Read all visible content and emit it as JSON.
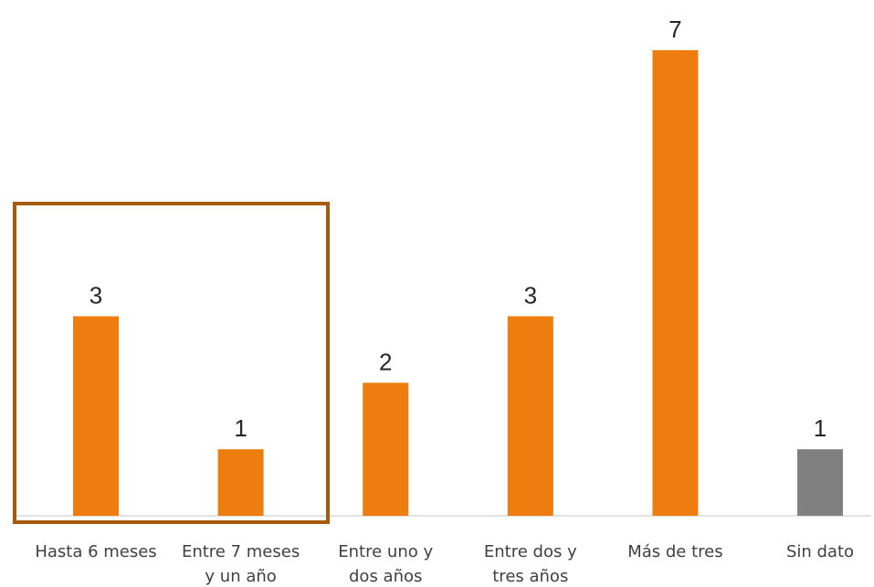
{
  "chart_data": {
    "type": "bar",
    "categories": [
      [
        "Hasta 6 meses"
      ],
      [
        "Entre 7 meses",
        "y un año"
      ],
      [
        "Entre uno y",
        "dos años"
      ],
      [
        "Entre dos y",
        "tres años"
      ],
      [
        "Más de tres"
      ],
      [
        "Sin dato"
      ]
    ],
    "values": [
      3,
      1,
      2,
      3,
      7,
      1
    ],
    "data_labels": [
      "3",
      "1",
      "2",
      "3",
      "7",
      "1"
    ],
    "ylim": [
      0,
      7
    ],
    "grid": false,
    "colors": {
      "bar": "#ED7D0F",
      "bar_missing": "#808080",
      "highlight_box": "#A85A0C",
      "baseline": "#D9D9D9"
    },
    "bar_colors": [
      "#ED7D0F",
      "#ED7D0F",
      "#ED7D0F",
      "#ED7D0F",
      "#ED7D0F",
      "#808080"
    ],
    "highlight_box_category_indices": [
      0,
      1
    ]
  }
}
